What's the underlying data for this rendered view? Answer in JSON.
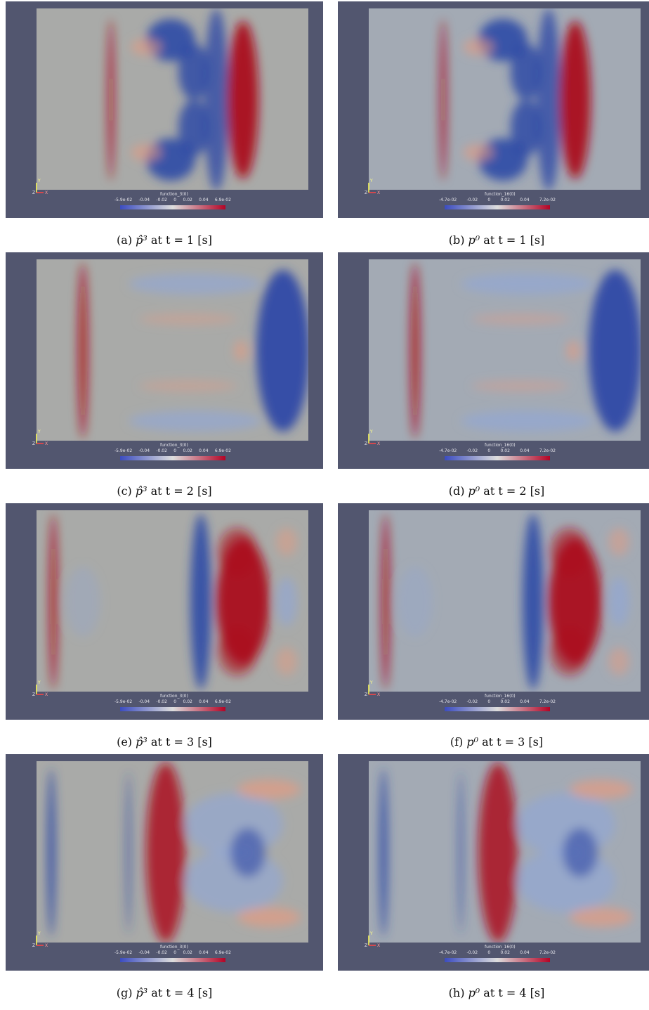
{
  "colors": {
    "background": "#52566f",
    "neutral": "#a9aaa8",
    "blue": "#2f4aa6",
    "red": "#ab0f1c",
    "light_blue": "#8fa6d8",
    "light_red": "#e39b82"
  },
  "panels": [
    {
      "id": "a",
      "caption_prefix": "(a)",
      "field": "p̂³",
      "time": "t = 1 [s]",
      "colorbar_title": "function_3(0)",
      "ticks": [
        "-5.9e-02",
        "-0.04",
        "-0.02",
        "0",
        "0.02",
        "0.04",
        "6.9e-02"
      ]
    },
    {
      "id": "b",
      "caption_prefix": "(b)",
      "field": "p⁰",
      "time": "t = 1 [s]",
      "colorbar_title": "function_16(0)",
      "ticks": [
        "-4.7e-02",
        "-0.02",
        "0",
        "0.02",
        "0.04",
        "7.2e-02"
      ]
    },
    {
      "id": "c",
      "caption_prefix": "(c)",
      "field": "p̂³",
      "time": "t = 2 [s]",
      "colorbar_title": "function_3(0)",
      "ticks": [
        "-5.9e-02",
        "-0.04",
        "-0.02",
        "0",
        "0.02",
        "0.04",
        "6.9e-02"
      ]
    },
    {
      "id": "d",
      "caption_prefix": "(d)",
      "field": "p⁰",
      "time": "t = 2 [s]",
      "colorbar_title": "function_16(0)",
      "ticks": [
        "-4.7e-02",
        "-0.02",
        "0",
        "0.02",
        "0.04",
        "7.2e-02"
      ]
    },
    {
      "id": "e",
      "caption_prefix": "(e)",
      "field": "p̂³",
      "time": "t = 3 [s]",
      "colorbar_title": "function_3(0)",
      "ticks": [
        "-5.9e-02",
        "-0.04",
        "-0.02",
        "0",
        "0.02",
        "0.04",
        "6.9e-02"
      ]
    },
    {
      "id": "f",
      "caption_prefix": "(f)",
      "field": "p⁰",
      "time": "t = 3 [s]",
      "colorbar_title": "function_16(0)",
      "ticks": [
        "-4.7e-02",
        "-0.02",
        "0",
        "0.02",
        "0.04",
        "7.2e-02"
      ]
    },
    {
      "id": "g",
      "caption_prefix": "(g)",
      "field": "p̂³",
      "time": "t = 4 [s]",
      "colorbar_title": "function_3(0)",
      "ticks": [
        "-5.9e-02",
        "-0.04",
        "-0.02",
        "0",
        "0.02",
        "0.04",
        "6.9e-02"
      ]
    },
    {
      "id": "h",
      "caption_prefix": "(h)",
      "field": "p⁰",
      "time": "t = 4 [s]",
      "colorbar_title": "function_16(0)",
      "ticks": [
        "-4.7e-02",
        "-0.02",
        "0",
        "0.02",
        "0.04",
        "7.2e-02"
      ]
    }
  ],
  "axes_labels": {
    "y": "Y",
    "z": "Z",
    "x": "X"
  }
}
